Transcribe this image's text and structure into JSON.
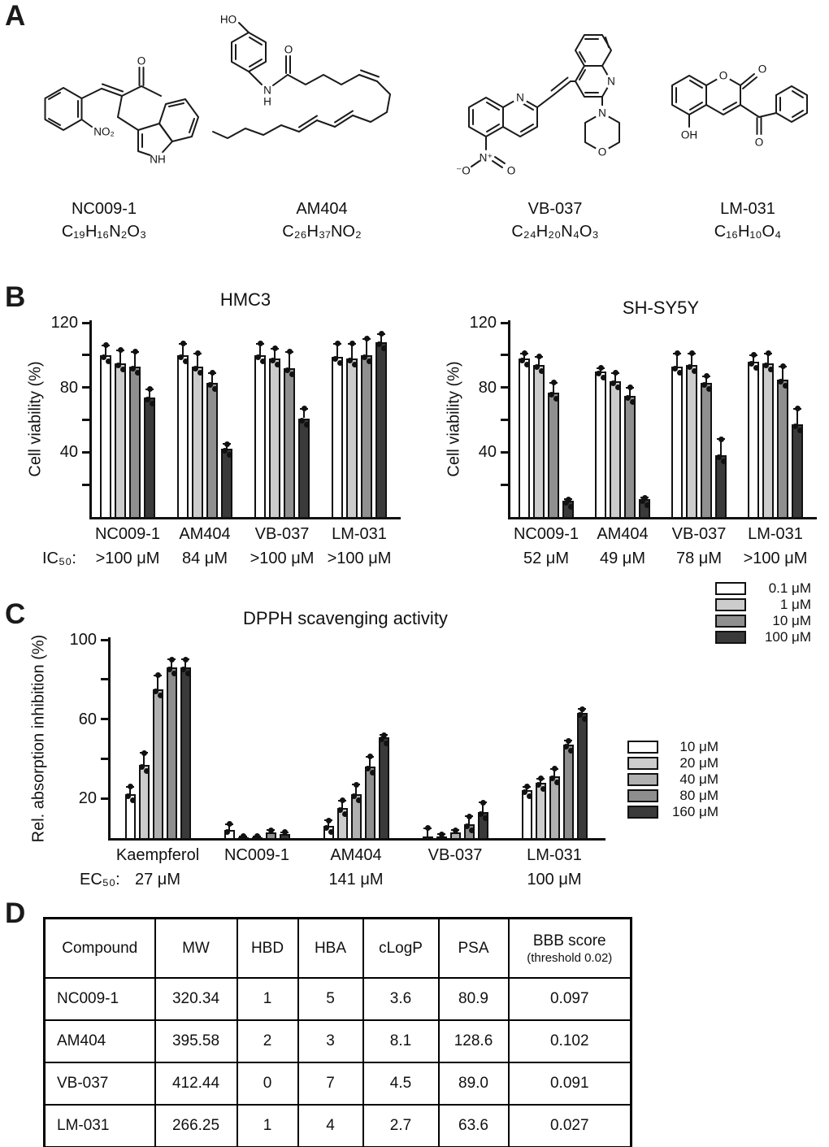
{
  "panels": {
    "a": "A",
    "b": "B",
    "c": "C",
    "d": "D"
  },
  "panelA": {
    "compounds": [
      {
        "name": "NC009-1",
        "formula": "C₁₉H₁₆N₂O₃",
        "atom_labels": [
          "O",
          "NO₂",
          "NH"
        ]
      },
      {
        "name": "AM404",
        "formula": "C₂₆H₃₇NO₂",
        "atom_labels": [
          "HO",
          "N",
          "H",
          "O"
        ]
      },
      {
        "name": "VB-037",
        "formula": "C₂₄H₂₀N₄O₃",
        "atom_labels": [
          "N",
          "N⁺",
          "⁻O",
          "O",
          "N",
          "N",
          "O"
        ]
      },
      {
        "name": "LM-031",
        "formula": "C₁₆H₁₀O₄",
        "atom_labels": [
          "O",
          "O",
          "O",
          "OH"
        ]
      }
    ]
  },
  "chart_data": [
    {
      "id": "hmc3",
      "type": "bar",
      "title": "HMC3",
      "xlabel": "",
      "ylabel": "Cell viability (%)",
      "ylim": [
        0,
        120
      ],
      "yticks": [
        20,
        40,
        60,
        80,
        100,
        120
      ],
      "ytick_labels": [
        40,
        80,
        120
      ],
      "grid": false,
      "legend": "shared-right",
      "categories": [
        "NC009-1",
        "AM404",
        "VB-037",
        "LM-031"
      ],
      "series": [
        {
          "name": "0.1 μM",
          "color": "#ffffff",
          "values": [
            100,
            100,
            100,
            99
          ],
          "err": [
            6,
            7,
            7,
            8
          ]
        },
        {
          "name": "1 μM",
          "color": "#cccccc",
          "values": [
            95,
            93,
            98,
            98
          ],
          "err": [
            8,
            8,
            6,
            9
          ]
        },
        {
          "name": "10 μM",
          "color": "#8f8f8f",
          "values": [
            93,
            83,
            92,
            100
          ],
          "err": [
            9,
            6,
            10,
            10
          ]
        },
        {
          "name": "100 μM",
          "color": "#3a3a3a",
          "values": [
            74,
            42,
            61,
            108
          ],
          "err": [
            5,
            3,
            6,
            5
          ]
        }
      ],
      "footer": {
        "label": "IC₅₀:",
        "values": [
          ">100 μM",
          "84 μM",
          ">100 μM",
          ">100 μM"
        ]
      }
    },
    {
      "id": "shsy5y",
      "type": "bar",
      "title": "SH-SY5Y",
      "xlabel": "",
      "ylabel": "Cell viability (%)",
      "ylim": [
        0,
        120
      ],
      "yticks": [
        20,
        40,
        60,
        80,
        100,
        120
      ],
      "ytick_labels": [
        40,
        80,
        120
      ],
      "grid": false,
      "legend": "shared-right",
      "categories": [
        "NC009-1",
        "AM404",
        "VB-037",
        "LM-031"
      ],
      "series": [
        {
          "name": "0.1 μM",
          "color": "#ffffff",
          "values": [
            98,
            90,
            93,
            96
          ],
          "err": [
            3,
            2,
            8,
            4
          ]
        },
        {
          "name": "1 μM",
          "color": "#cccccc",
          "values": [
            94,
            84,
            94,
            95
          ],
          "err": [
            5,
            5,
            7,
            6
          ]
        },
        {
          "name": "10 μM",
          "color": "#8f8f8f",
          "values": [
            77,
            75,
            83,
            85
          ],
          "err": [
            6,
            5,
            4,
            8
          ]
        },
        {
          "name": "100 μM",
          "color": "#3a3a3a",
          "values": [
            10,
            11,
            38,
            57
          ],
          "err": [
            1,
            1,
            10,
            10
          ]
        }
      ],
      "footer": {
        "label": "",
        "values": [
          "52 μM",
          "49 μM",
          "78 μM",
          ">100 μM"
        ]
      }
    },
    {
      "id": "dpph",
      "type": "bar",
      "title": "DPPH scavenging activity",
      "xlabel": "",
      "ylabel": "Rel. absorption inhibition (%)",
      "ylim": [
        0,
        100
      ],
      "yticks": [
        20,
        40,
        60,
        80,
        100
      ],
      "ytick_labels": [
        20,
        60,
        100
      ],
      "grid": false,
      "legend": "right",
      "categories": [
        "Kaempferol",
        "NC009-1",
        "AM404",
        "VB-037",
        "LM-031"
      ],
      "series": [
        {
          "name": "10 μM",
          "color": "#ffffff",
          "values": [
            22,
            4,
            6,
            1,
            24
          ],
          "err": [
            4,
            3,
            3,
            4,
            2
          ]
        },
        {
          "name": "20 μM",
          "color": "#cccccc",
          "values": [
            37,
            0.5,
            15,
            1,
            28
          ],
          "err": [
            6,
            0.5,
            4,
            1,
            2
          ]
        },
        {
          "name": "40 μM",
          "color": "#b0b0b0",
          "values": [
            75,
            0.5,
            22,
            3,
            31
          ],
          "err": [
            7,
            0.5,
            5,
            1,
            4
          ]
        },
        {
          "name": "80 μM",
          "color": "#8e8e8e",
          "values": [
            86,
            3,
            36,
            7,
            47
          ],
          "err": [
            4,
            1,
            5,
            4,
            2
          ]
        },
        {
          "name": "160 μM",
          "color": "#3a3a3a",
          "values": [
            86,
            2,
            51,
            13,
            63
          ],
          "err": [
            4,
            1,
            1,
            5,
            2
          ]
        }
      ],
      "footer": {
        "label": "EC₅₀:",
        "values": [
          "27 μM",
          "",
          "141 μM",
          "",
          "100 μM"
        ]
      }
    }
  ],
  "table": {
    "headers": [
      "Compound",
      "MW",
      "HBD",
      "HBA",
      "cLogP",
      "PSA",
      "BBB score"
    ],
    "header_note": "(threshold 0.02)",
    "rows": [
      [
        "NC009-1",
        "320.34",
        "1",
        "5",
        "3.6",
        "80.9",
        "0.097"
      ],
      [
        "AM404",
        "395.58",
        "2",
        "3",
        "8.1",
        "128.6",
        "0.102"
      ],
      [
        "VB-037",
        "412.44",
        "0",
        "7",
        "4.5",
        "89.0",
        "0.091"
      ],
      [
        "LM-031",
        "266.25",
        "1",
        "4",
        "2.7",
        "63.6",
        "0.027"
      ]
    ]
  }
}
